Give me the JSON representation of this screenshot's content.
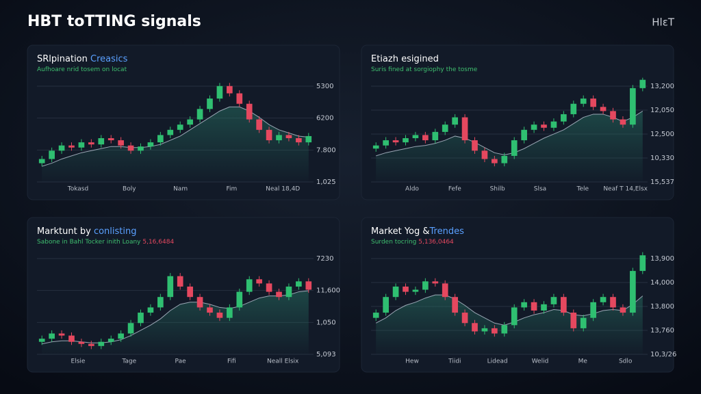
{
  "header": {
    "title": "HBT toTTING signals",
    "badge": "HlɛT"
  },
  "chart_data": [
    {
      "type": "candlestick",
      "title": "SRlpination ",
      "title_accent": "Creasics",
      "subtitle": "Aufhoare nrid tosem on locat",
      "x_labels": [
        "Tokasd",
        "Boly",
        "Nam",
        "Fim",
        "Neal 18,4D"
      ],
      "y_labels": [
        "5300",
        "6200",
        "7.800",
        "1,025"
      ],
      "ylim": [
        0,
        105
      ],
      "up_color": "#2fbf71",
      "down_color": "#e5485f",
      "open": [
        18,
        22,
        30,
        35,
        33,
        38,
        36,
        42,
        40,
        35,
        30,
        34,
        38,
        45,
        50,
        55,
        60,
        70,
        80,
        92,
        85,
        75,
        60,
        50,
        40,
        45,
        42,
        38
      ],
      "high": [
        25,
        33,
        38,
        38,
        41,
        41,
        45,
        45,
        43,
        38,
        37,
        41,
        48,
        53,
        58,
        63,
        73,
        83,
        95,
        95,
        88,
        78,
        63,
        53,
        48,
        48,
        45,
        47
      ],
      "low": [
        15,
        19,
        27,
        30,
        30,
        33,
        33,
        37,
        32,
        27,
        27,
        31,
        35,
        42,
        47,
        52,
        57,
        67,
        77,
        82,
        72,
        57,
        47,
        37,
        37,
        39,
        35,
        35
      ],
      "close": [
        22,
        30,
        35,
        33,
        38,
        36,
        42,
        40,
        35,
        30,
        34,
        38,
        45,
        50,
        55,
        60,
        70,
        80,
        92,
        85,
        75,
        60,
        50,
        40,
        45,
        42,
        38,
        44
      ],
      "trend": [
        15,
        18,
        22,
        25,
        28,
        30,
        32,
        34,
        34,
        33,
        33,
        34,
        36,
        40,
        44,
        50,
        56,
        62,
        68,
        72,
        72,
        68,
        62,
        55,
        50,
        47,
        44,
        43
      ]
    },
    {
      "type": "candlestick",
      "title": "Etiazh esigined",
      "title_accent": "",
      "subtitle": "Suris fined at sorgiophy the tosme",
      "x_labels": [
        "Aldo",
        "Fefe",
        "Shilb",
        "Slsa",
        "Tele",
        "Neaf T 14,Elsx"
      ],
      "y_labels": [
        "13,200",
        "12,050",
        "12,500",
        "10,330",
        "15,537"
      ],
      "ylim": [
        0,
        105
      ],
      "up_color": "#2fbf71",
      "down_color": "#e5485f",
      "open": [
        32,
        35,
        40,
        38,
        42,
        45,
        40,
        48,
        55,
        62,
        40,
        30,
        22,
        18,
        25,
        40,
        50,
        55,
        52,
        58,
        65,
        75,
        80,
        72,
        68,
        60,
        55,
        90
      ],
      "high": [
        38,
        43,
        43,
        45,
        48,
        48,
        51,
        58,
        65,
        65,
        43,
        33,
        25,
        28,
        43,
        53,
        58,
        58,
        61,
        68,
        78,
        83,
        83,
        75,
        71,
        63,
        93,
        100
      ],
      "low": [
        29,
        32,
        35,
        35,
        39,
        37,
        37,
        45,
        52,
        37,
        27,
        19,
        15,
        15,
        22,
        37,
        47,
        49,
        49,
        55,
        62,
        72,
        69,
        65,
        57,
        52,
        52,
        87
      ],
      "close": [
        35,
        40,
        38,
        42,
        45,
        40,
        48,
        55,
        62,
        40,
        30,
        22,
        18,
        25,
        40,
        50,
        55,
        52,
        58,
        65,
        75,
        80,
        72,
        68,
        60,
        55,
        90,
        98
      ],
      "trend": [
        25,
        28,
        30,
        32,
        34,
        35,
        37,
        40,
        44,
        42,
        38,
        33,
        28,
        26,
        28,
        32,
        37,
        42,
        46,
        50,
        56,
        62,
        65,
        65,
        62,
        58,
        62,
        68
      ]
    },
    {
      "type": "candlestick",
      "title": "Marktunt by ",
      "title_accent": "conlisting",
      "subtitle": "Sabone in Bahl Tocker inith Loany ",
      "subtitle_accent": "5,16,6484",
      "x_labels": [
        "Elsie",
        "Tage",
        "Pae",
        "Fifi",
        "Neall Elsix"
      ],
      "y_labels": [
        "7230",
        "11,600",
        "1,050",
        "5,093"
      ],
      "ylim": [
        0,
        105
      ],
      "up_color": "#2fbf71",
      "down_color": "#e5485f",
      "open": [
        12,
        15,
        20,
        18,
        12,
        10,
        8,
        12,
        15,
        20,
        30,
        40,
        45,
        55,
        75,
        65,
        55,
        45,
        40,
        35,
        45,
        60,
        72,
        68,
        60,
        55,
        65,
        70
      ],
      "high": [
        18,
        23,
        23,
        21,
        15,
        13,
        15,
        18,
        23,
        33,
        43,
        48,
        58,
        78,
        78,
        68,
        58,
        48,
        43,
        48,
        63,
        75,
        75,
        71,
        63,
        68,
        73,
        73
      ],
      "low": [
        9,
        12,
        15,
        9,
        7,
        5,
        5,
        9,
        12,
        17,
        27,
        37,
        42,
        52,
        62,
        52,
        42,
        37,
        32,
        32,
        42,
        57,
        65,
        57,
        52,
        52,
        62,
        59
      ],
      "close": [
        15,
        20,
        18,
        12,
        10,
        8,
        12,
        15,
        20,
        30,
        40,
        45,
        55,
        75,
        65,
        55,
        45,
        40,
        35,
        45,
        60,
        72,
        68,
        60,
        55,
        65,
        70,
        62
      ],
      "trend": [
        10,
        12,
        13,
        13,
        12,
        11,
        11,
        12,
        14,
        18,
        23,
        28,
        34,
        42,
        48,
        50,
        50,
        48,
        45,
        44,
        46,
        50,
        54,
        56,
        56,
        57,
        60,
        61
      ]
    },
    {
      "type": "candlestick",
      "title": "Market Yog &",
      "title_accent": "Trendes",
      "subtitle": "Surden tocring ",
      "subtitle_accent": "5,136,0464",
      "x_labels": [
        "Hew",
        "Tiidi",
        "Lidead",
        "Welid",
        "Me",
        "Sdlo"
      ],
      "y_labels": [
        "13,900",
        "14,000",
        "13,800",
        "13,760",
        "10,3/26"
      ],
      "ylim": [
        0,
        105
      ],
      "up_color": "#2fbf71",
      "down_color": "#e5485f",
      "open": [
        35,
        40,
        55,
        65,
        60,
        62,
        70,
        68,
        55,
        40,
        30,
        22,
        25,
        20,
        28,
        45,
        50,
        42,
        48,
        55,
        40,
        25,
        35,
        50,
        55,
        45,
        40,
        80
      ],
      "high": [
        43,
        58,
        68,
        68,
        65,
        73,
        73,
        71,
        58,
        43,
        33,
        28,
        28,
        31,
        48,
        53,
        53,
        51,
        58,
        58,
        43,
        38,
        53,
        58,
        58,
        48,
        83,
        98
      ],
      "low": [
        32,
        37,
        52,
        57,
        57,
        59,
        65,
        52,
        37,
        27,
        19,
        19,
        17,
        17,
        25,
        42,
        39,
        39,
        45,
        37,
        22,
        22,
        32,
        47,
        42,
        37,
        37,
        77
      ],
      "close": [
        40,
        55,
        65,
        60,
        62,
        70,
        68,
        55,
        40,
        30,
        22,
        25,
        20,
        28,
        45,
        50,
        42,
        48,
        55,
        40,
        25,
        35,
        50,
        55,
        45,
        40,
        80,
        95
      ],
      "trend": [
        30,
        35,
        42,
        47,
        50,
        54,
        57,
        57,
        53,
        47,
        40,
        35,
        30,
        28,
        31,
        35,
        38,
        40,
        43,
        42,
        38,
        37,
        39,
        42,
        43,
        42,
        48,
        56
      ]
    }
  ]
}
